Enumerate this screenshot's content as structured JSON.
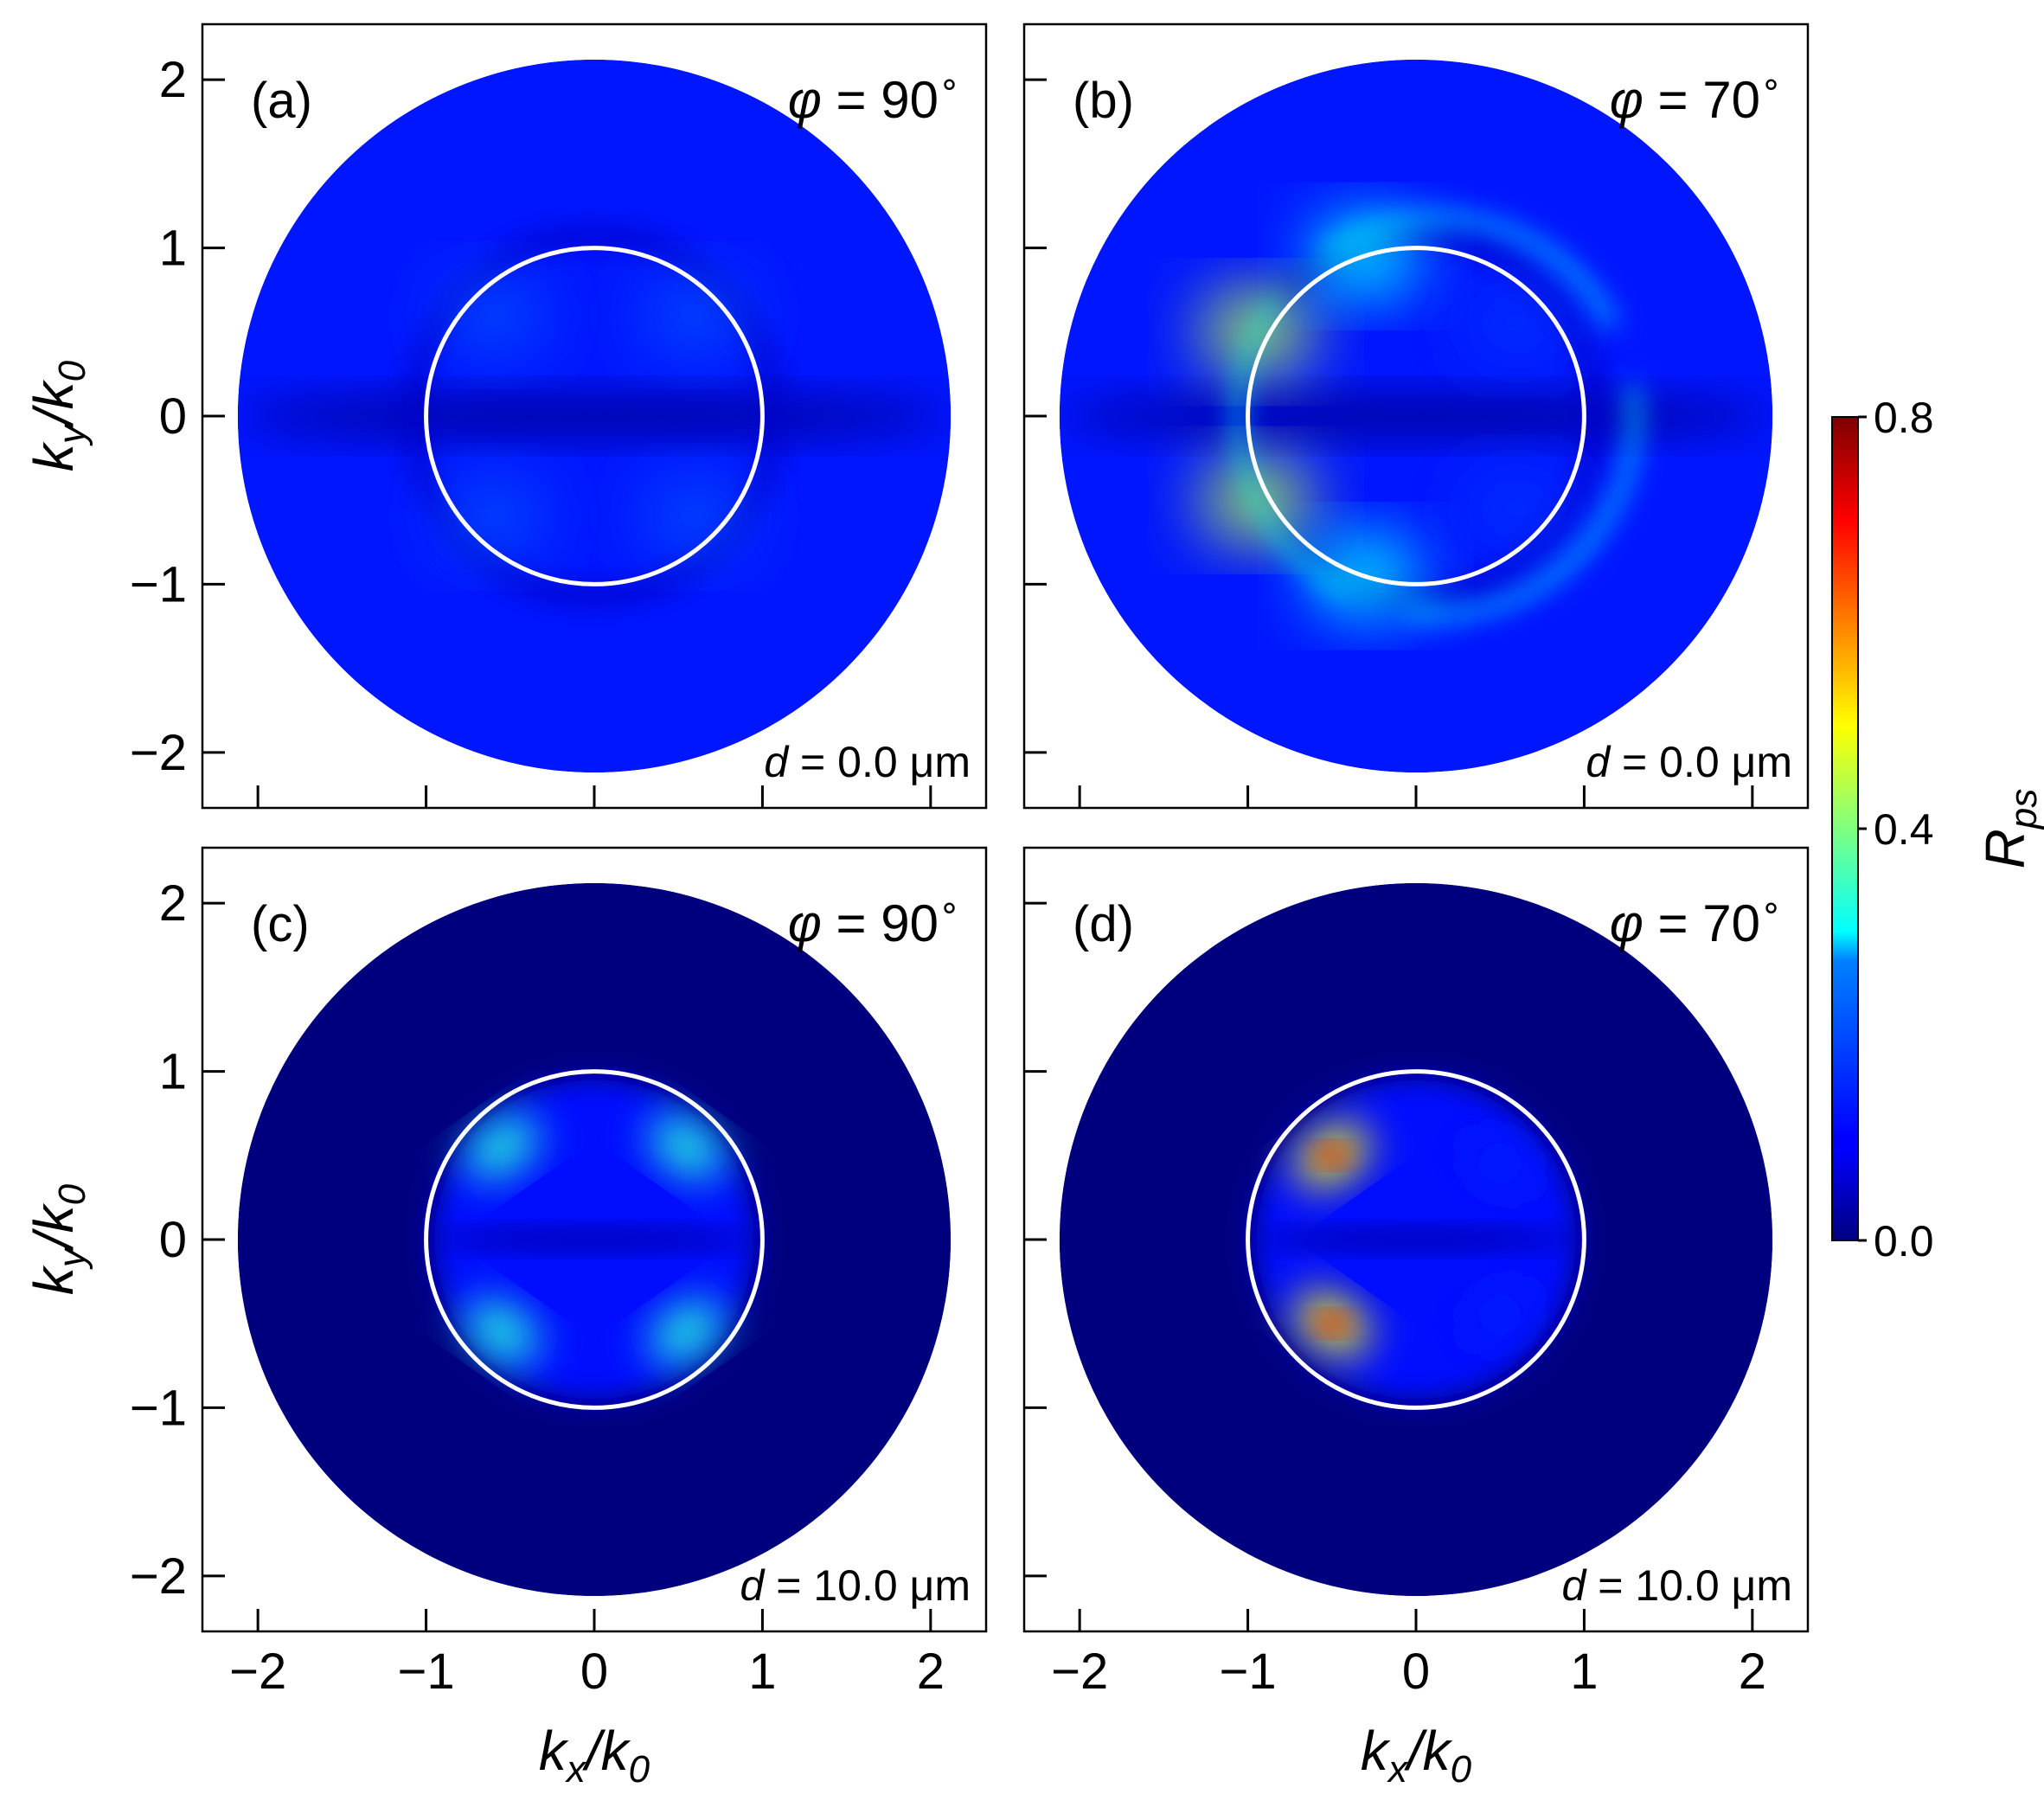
{
  "chart_data": {
    "type": "heatmap",
    "colorbar": {
      "label": "R",
      "label_sub": "ps",
      "range": [
        0.0,
        0.8
      ],
      "ticks": [
        0.0,
        0.4,
        0.8
      ],
      "tick_labels": [
        "0.0",
        "0.4",
        "0.8"
      ],
      "colormap": "jet"
    },
    "x_range": [
      -2.33,
      2.33
    ],
    "y_range": [
      -2.33,
      2.33
    ],
    "x_ticks": [
      -2,
      -1,
      0,
      1,
      2
    ],
    "y_ticks": [
      -2,
      -1,
      0,
      1,
      2
    ],
    "x_tick_labels": [
      "−2",
      "−1",
      "0",
      "1",
      "2"
    ],
    "y_tick_labels": [
      "−2",
      "−1",
      "0",
      "1",
      "2"
    ],
    "xlabel": {
      "k": "k",
      "sub1": "x",
      "slash": "/k",
      "sub2": "0"
    },
    "ylabel": {
      "k": "k",
      "sub1": "y",
      "slash": "/k",
      "sub2": "0"
    },
    "domain_radius": 2.12,
    "light_cone_radius": 1.0,
    "panels": [
      {
        "id": "a",
        "label": "(a)",
        "phi_symbol": "φ",
        "phi_value": "90",
        "phi_unit": "∘",
        "d_symbol": "d",
        "d_value": "0.0",
        "d_unit": "μm",
        "phi_deg": 90,
        "d_um": 0.0,
        "max_Rps": 0.22
      },
      {
        "id": "b",
        "label": "(b)",
        "phi_symbol": "φ",
        "phi_value": "70",
        "phi_unit": "∘",
        "d_symbol": "d",
        "d_value": "0.0",
        "d_unit": "μm",
        "phi_deg": 70,
        "d_um": 0.0,
        "max_Rps": 0.45
      },
      {
        "id": "c",
        "label": "(c)",
        "phi_symbol": "φ",
        "phi_value": "90",
        "phi_unit": "∘",
        "d_symbol": "d",
        "d_value": "10.0",
        "d_unit": "μm",
        "phi_deg": 90,
        "d_um": 10.0,
        "max_Rps": 0.4
      },
      {
        "id": "d",
        "label": "(d)",
        "phi_symbol": "φ",
        "phi_value": "70",
        "phi_unit": "∘",
        "d_symbol": "d",
        "d_value": "10.0",
        "d_unit": "μm",
        "phi_deg": 70,
        "d_um": 10.0,
        "max_Rps": 0.62
      }
    ]
  }
}
